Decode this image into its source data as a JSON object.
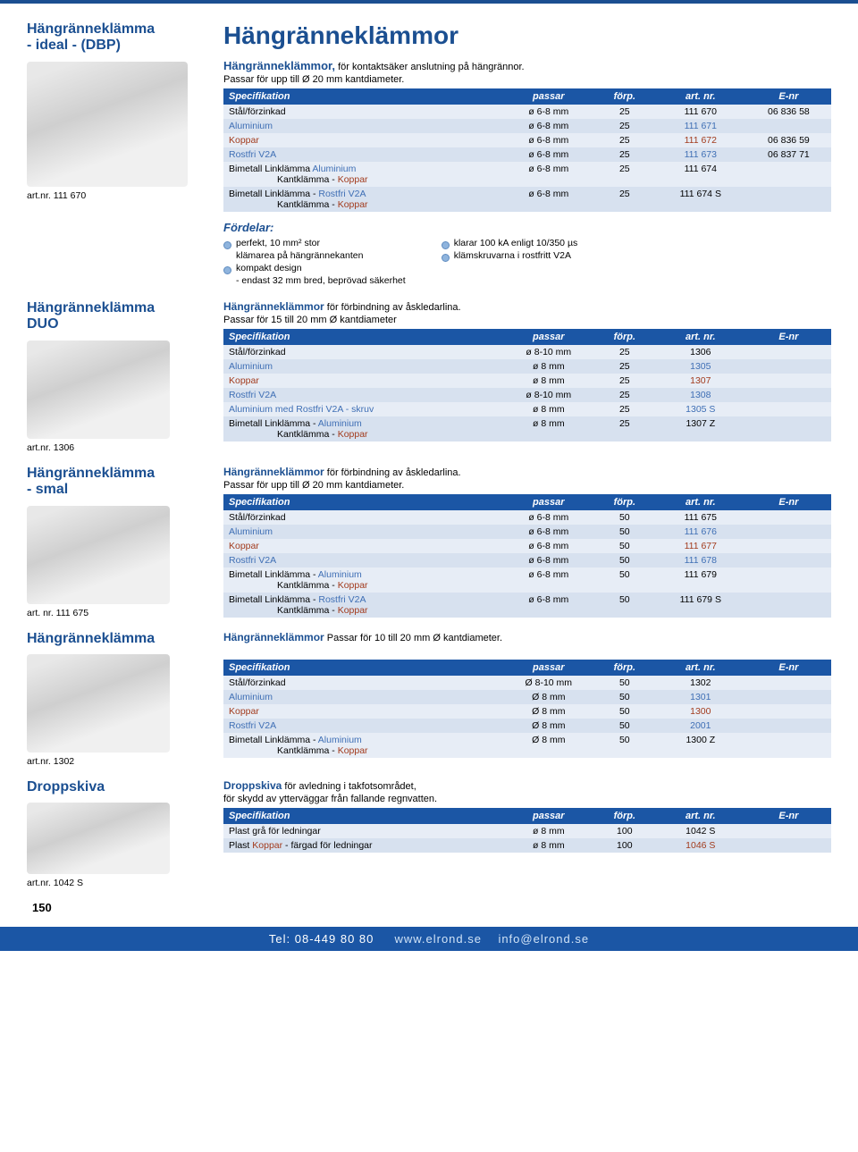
{
  "page": {
    "main_title": "Hängränneklämmor",
    "pagenum": "150",
    "footer_tel": "Tel: 08-449 80 80",
    "footer_web": "www.elrond.se",
    "footer_mail": "info@elrond.se"
  },
  "spec_header": {
    "col1": "Specifikation",
    "col2": "passar",
    "col3": "förp.",
    "col4": "art. nr.",
    "col5": "E-nr"
  },
  "section1": {
    "title_a": "Hängränneklämma",
    "title_b": "- ideal - (DBP)",
    "artnr": "art.nr. 111 670",
    "lead_a": "Hängränneklämmor,",
    "lead_b": "för kontaktsäker anslutning på hängrännor.",
    "lead_c": "Passar för upp till Ø 20 mm kantdiameter.",
    "rows": [
      {
        "c1": "Stål/förzinkad",
        "cls1": "txt-blk",
        "c2": "ø 6-8 mm",
        "c3": "25",
        "c4": "111 670",
        "c5": "06 836 58",
        "stripe": "stripe-light"
      },
      {
        "c1": "Aluminium",
        "cls1": "txt-al",
        "c2": "ø 6-8 mm",
        "c3": "25",
        "c4": "111 671",
        "c5": "",
        "stripe": "stripe-dark"
      },
      {
        "c1": "Koppar",
        "cls1": "txt-cu",
        "c2": "ø 6-8 mm",
        "c3": "25",
        "c4": "111 672",
        "c5": "06 836 59",
        "stripe": "stripe-light"
      },
      {
        "c1": "Rostfri V2A",
        "cls1": "txt-al",
        "c2": "ø 6-8 mm",
        "c3": "25",
        "c4": "111 673",
        "c5": "06 837 71",
        "stripe": "stripe-dark"
      },
      {
        "c1": "Bimetall   Linklämma Aluminium",
        "c1b": "Kantklämma - Koppar",
        "cls1": "txt-blk",
        "c2": "ø 6-8 mm",
        "c3": "25",
        "c4": "111 674",
        "c5": "",
        "stripe": "stripe-light"
      },
      {
        "c1": "Bimetall   Linklämma - Rostfri V2A",
        "c1b": "Kantklämma  -  Koppar",
        "cls1": "txt-blk",
        "c2": "ø 6-8 mm",
        "c3": "25",
        "c4": "111 674 S",
        "c5": "",
        "stripe": "stripe-dark"
      }
    ],
    "fordelar_label": "Fördelar:",
    "bullets_left": [
      {
        "t": "perfekt, 10 mm² stor",
        "dot": true
      },
      {
        "t": "klämarea på hängrännekanten",
        "dot": false
      },
      {
        "t": "kompakt design",
        "dot": true
      },
      {
        "t": "- endast 32 mm bred, beprövad säkerhet",
        "dot": false
      }
    ],
    "bullets_right": [
      {
        "t": "klarar 100 kA enligt 10/350 µs",
        "dot": true
      },
      {
        "t": "klämskruvarna i rostfritt V2A",
        "dot": true
      }
    ]
  },
  "section2": {
    "title_a": "Hängränneklämma",
    "title_b": "DUO",
    "artnr": "art.nr. 1306",
    "lead_a": "Hängränneklämmor",
    "lead_b": "för förbindning av åskledarlina.",
    "lead_c": "Passar för 15 till 20 mm Ø kantdiameter",
    "rows": [
      {
        "c1": "Stål/förzinkad",
        "cls1": "txt-blk",
        "c2": "ø 8-10 mm",
        "c3": "25",
        "c4": "1306",
        "c5": "",
        "stripe": "stripe-light"
      },
      {
        "c1": "Aluminium",
        "cls1": "txt-al",
        "c2": "ø 8 mm",
        "c3": "25",
        "c4": "1305",
        "c5": "",
        "stripe": "stripe-dark"
      },
      {
        "c1": "Koppar",
        "cls1": "txt-cu",
        "c2": "ø 8 mm",
        "c3": "25",
        "c4": "1307",
        "c5": "",
        "stripe": "stripe-light"
      },
      {
        "c1": "Rostfri V2A",
        "cls1": "txt-al",
        "c2": "ø 8-10 mm",
        "c3": "25",
        "c4": "1308",
        "c5": "",
        "stripe": "stripe-dark"
      },
      {
        "c1": "Aluminium med Rostfri V2A - skruv",
        "cls1": "txt-al",
        "c2": "ø 8 mm",
        "c3": "25",
        "c4": "1305 S",
        "c5": "",
        "stripe": "stripe-light"
      },
      {
        "c1": "Bimetall   Linklämma - Aluminium",
        "c1b": "Kantklämma - Koppar",
        "cls1": "txt-blk",
        "c2": "ø 8 mm",
        "c3": "25",
        "c4": "1307 Z",
        "c5": "",
        "stripe": "stripe-dark"
      }
    ]
  },
  "section3": {
    "title_a": "Hängränneklämma",
    "title_b": "- smal",
    "artnr": "art. nr. 111 675",
    "lead_a": "Hängränneklämmor",
    "lead_b": "för förbindning av åskledarlina.",
    "lead_c": "Passar för upp till Ø 20 mm kantdiameter.",
    "rows": [
      {
        "c1": "Stål/förzinkad",
        "cls1": "txt-blk",
        "c2": "ø 6-8 mm",
        "c3": "50",
        "c4": "111 675",
        "c5": "",
        "stripe": "stripe-light"
      },
      {
        "c1": "Aluminium",
        "cls1": "txt-al",
        "c2": "ø 6-8 mm",
        "c3": "50",
        "c4": "111 676",
        "c5": "",
        "stripe": "stripe-dark"
      },
      {
        "c1": "Koppar",
        "cls1": "txt-cu",
        "c2": "ø 6-8 mm",
        "c3": "50",
        "c4": "111 677",
        "c5": "",
        "stripe": "stripe-light"
      },
      {
        "c1": "Rostfri V2A",
        "cls1": "txt-al",
        "c2": "ø 6-8 mm",
        "c3": "50",
        "c4": "111 678",
        "c5": "",
        "stripe": "stripe-dark"
      },
      {
        "c1": "Bimetall   Linklämma - Aluminium",
        "c1b": "Kantklämma - Koppar",
        "cls1": "txt-blk",
        "c2": "ø 6-8 mm",
        "c3": "50",
        "c4": "111 679",
        "c5": "",
        "stripe": "stripe-light"
      },
      {
        "c1": "Bimetall   Linklämma - Rostfri V2A",
        "c1b": "Kantklämma - Koppar",
        "cls1": "txt-blk",
        "c2": "ø 6-8 mm",
        "c3": "50",
        "c4": "111 679 S",
        "c5": "",
        "stripe": "stripe-dark"
      }
    ]
  },
  "section4": {
    "title_a": "Hängränneklämma",
    "artnr": "art.nr. 1302",
    "lead_a": "Hängränneklämmor",
    "lead_b": "Passar för 10 till 20 mm Ø kantdiameter.",
    "rows": [
      {
        "c1": "Stål/förzinkad",
        "cls1": "txt-blk",
        "c2": "Ø 8-10 mm",
        "c3": "50",
        "c4": "1302",
        "c5": "",
        "stripe": "stripe-light"
      },
      {
        "c1": "Aluminium",
        "cls1": "txt-al",
        "c2": "Ø 8 mm",
        "c3": "50",
        "c4": "1301",
        "c5": "",
        "stripe": "stripe-dark"
      },
      {
        "c1": "Koppar",
        "cls1": "txt-cu",
        "c2": "Ø 8 mm",
        "c3": "50",
        "c4": "1300",
        "c5": "",
        "stripe": "stripe-light"
      },
      {
        "c1": "Rostfri V2A",
        "cls1": "txt-al",
        "c2": "Ø 8 mm",
        "c3": "50",
        "c4": "2001",
        "c5": "",
        "stripe": "stripe-dark"
      },
      {
        "c1": "Bimetall   Linklämma - Aluminium",
        "c1b": "Kantklämma - Koppar",
        "cls1": "txt-blk",
        "c2": "Ø 8 mm",
        "c3": "50",
        "c4": "1300 Z",
        "c5": "",
        "stripe": "stripe-light"
      }
    ]
  },
  "section5": {
    "title_a": "Droppskiva",
    "artnr": "art.nr. 1042 S",
    "lead_a": "Droppskiva",
    "lead_b": "för avledning i takfotsområdet,",
    "lead_c": "för skydd av ytterväggar från fallande regnvatten.",
    "rows": [
      {
        "c1": "Plast grå för ledningar",
        "cls1": "txt-blk",
        "c2": "ø 8 mm",
        "c3": "100",
        "c4": "1042 S",
        "c5": "",
        "stripe": "stripe-light"
      },
      {
        "c1": "Plast Koppar - färgad för ledningar",
        "cls1": "txt-blk",
        "c2": "ø 8 mm",
        "c3": "100",
        "c4": "1046 S",
        "c5": "",
        "stripe": "stripe-dark"
      }
    ]
  }
}
